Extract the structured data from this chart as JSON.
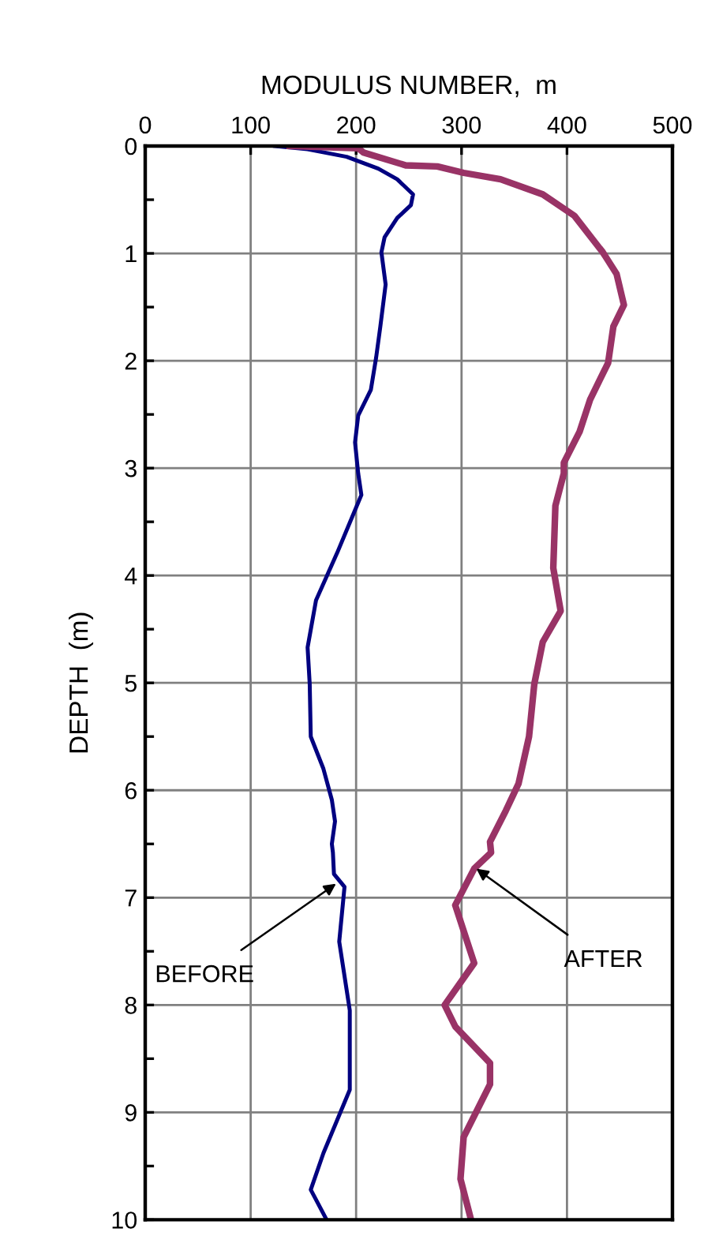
{
  "chart_data": {
    "type": "line",
    "xlabel": "MODULUS NUMBER,  m",
    "ylabel": "DEPTH  (m)",
    "xlim": [
      0,
      500
    ],
    "xticks": [
      0,
      100,
      200,
      300,
      400,
      500
    ],
    "ylim": [
      10,
      0
    ],
    "yticks": [
      0,
      {
        "value": 0.5,
        "label": null
      },
      1,
      {
        "value": 1.5,
        "label": null
      },
      2,
      {
        "value": 2.5,
        "label": null
      },
      3,
      {
        "value": 3.5,
        "label": null
      },
      4,
      {
        "value": 4.5,
        "label": null
      },
      5,
      {
        "value": 5.5,
        "label": null
      },
      6,
      {
        "value": 6.5,
        "label": null
      },
      7,
      {
        "value": 7.5,
        "label": null
      },
      8,
      {
        "value": 8.5,
        "label": null
      },
      9,
      {
        "value": 9.5,
        "label": null
      },
      10
    ],
    "grid": true,
    "legend": false,
    "marker": "none",
    "line_style": "solid",
    "series": [
      {
        "color": "#000080",
        "x": [
          123,
          154,
          191,
          221,
          239,
          254,
          252,
          239,
          227,
          224,
          228,
          223,
          219,
          214,
          202,
          199,
          202,
          205,
          199,
          182,
          162,
          154,
          156,
          157,
          169,
          177,
          180,
          177,
          178,
          179,
          189,
          184,
          194,
          194,
          169,
          157,
          172
        ],
        "values": [
          0.0,
          0.03,
          0.1,
          0.21,
          0.31,
          0.45,
          0.55,
          0.67,
          0.85,
          0.99,
          1.29,
          1.68,
          1.97,
          2.27,
          2.51,
          2.76,
          3.05,
          3.25,
          3.39,
          3.79,
          4.23,
          4.67,
          5.01,
          5.5,
          5.8,
          6.09,
          6.29,
          6.5,
          6.58,
          6.78,
          6.9,
          7.41,
          8.05,
          8.79,
          9.38,
          9.72,
          10.0
        ]
      },
      {
        "color": "#993366",
        "x": [
          137,
          202,
          207,
          247,
          277,
          302,
          337,
          377,
          407,
          434,
          447,
          454,
          444,
          439,
          422,
          412,
          397,
          397,
          389,
          387,
          394,
          377,
          369,
          364,
          354,
          342,
          327,
          328,
          312,
          294,
          312,
          284,
          294,
          327,
          327,
          302,
          299,
          309
        ],
        "values": [
          0.0,
          0.02,
          0.06,
          0.18,
          0.19,
          0.25,
          0.31,
          0.45,
          0.65,
          0.99,
          1.19,
          1.48,
          1.68,
          2.02,
          2.36,
          2.66,
          2.95,
          3.05,
          3.35,
          3.93,
          4.33,
          4.62,
          5.01,
          5.5,
          5.94,
          6.19,
          6.48,
          6.58,
          6.73,
          7.07,
          7.61,
          8.0,
          8.2,
          8.54,
          8.74,
          9.23,
          9.62,
          10.0
        ]
      }
    ],
    "annotations": [
      {
        "text": "BEFORE",
        "x": 181,
        "y": 6.87
      },
      {
        "text": "AFTER",
        "x": 314,
        "y": 6.73
      }
    ]
  }
}
